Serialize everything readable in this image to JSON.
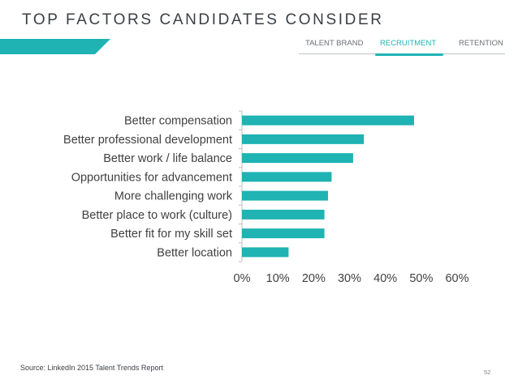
{
  "header": {
    "title": "TOP FACTORS CANDIDATES CONSIDER",
    "accent_color": "#1fb3b3"
  },
  "nav": {
    "tabs": [
      {
        "label": "TALENT BRAND",
        "active": false
      },
      {
        "label": "RECRUITMENT",
        "active": true
      },
      {
        "label": "RETENTION",
        "active": false
      }
    ]
  },
  "chart_data": {
    "type": "bar",
    "orientation": "horizontal",
    "categories": [
      "Better compensation",
      "Better professional development",
      "Better work / life balance",
      "Opportunities for advancement",
      "More challenging work",
      "Better place to work (culture)",
      "Better fit for my skill set",
      "Better location"
    ],
    "values": [
      48,
      34,
      31,
      25,
      24,
      23,
      23,
      13
    ],
    "value_unit": "%",
    "xlim": [
      0,
      60
    ],
    "x_ticks": [
      "0%",
      "10%",
      "20%",
      "30%",
      "40%",
      "50%",
      "60%"
    ],
    "bar_color": "#1fb3b3",
    "grid": false
  },
  "footer": {
    "source": "Source: LinkedIn 2015 Talent Trends Report",
    "page_number": "52"
  }
}
